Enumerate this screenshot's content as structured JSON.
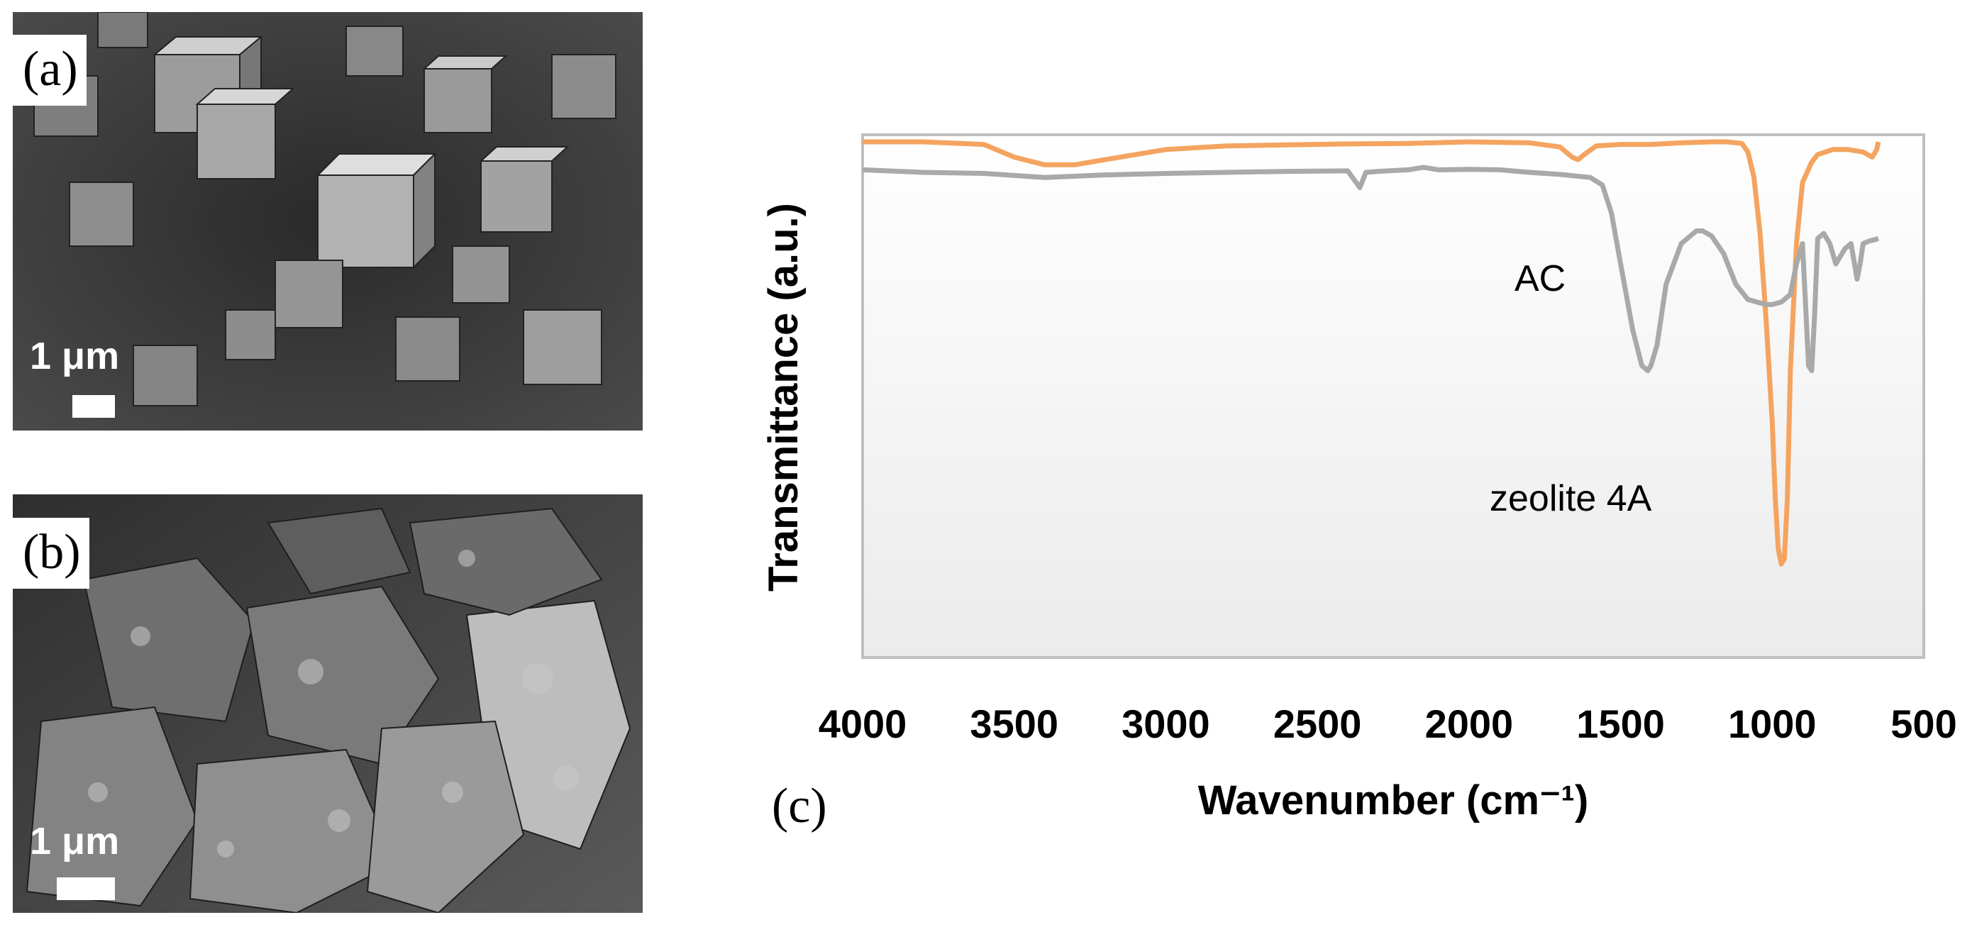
{
  "figure": {
    "panel_a": {
      "label": "(a)",
      "scale_text": "1 μm"
    },
    "panel_b": {
      "label": "(b)",
      "scale_text": "1 μm"
    },
    "panel_c": {
      "label": "(c)"
    }
  },
  "chart_data": {
    "type": "line",
    "title": "",
    "xlabel": "Wavenumber (cm⁻¹)",
    "ylabel": "Transmittance (a.u.)",
    "xlim": [
      4000,
      500
    ],
    "xticks": [
      "4000",
      "3500",
      "3000",
      "2500",
      "2000",
      "1500",
      "1000",
      "500"
    ],
    "ylim": [
      0,
      100
    ],
    "grid": false,
    "annotations": [
      {
        "text": "AC",
        "x": 1140,
        "y": 70
      },
      {
        "text": "zeolite 4A",
        "x": 1300,
        "y": 28
      }
    ],
    "series": [
      {
        "name": "zeolite 4A",
        "color": "#f4a460",
        "x": [
          4000,
          3800,
          3600,
          3500,
          3400,
          3300,
          3200,
          3100,
          3000,
          2800,
          2600,
          2400,
          2200,
          2000,
          1800,
          1700,
          1660,
          1640,
          1620,
          1580,
          1500,
          1400,
          1300,
          1200,
          1150,
          1100,
          1080,
          1060,
          1040,
          1020,
          1000,
          990,
          980,
          970,
          960,
          950,
          940,
          920,
          900,
          870,
          850,
          800,
          750,
          700,
          670,
          655,
          650
        ],
        "y": [
          100,
          100,
          99.5,
          97,
          95.5,
          95.5,
          96.5,
          97.5,
          98.5,
          99.2,
          99.4,
          99.6,
          99.7,
          100,
          99.8,
          99,
          97,
          96.5,
          97.5,
          99.2,
          99.5,
          99.5,
          99.8,
          100,
          100,
          99.7,
          98,
          93,
          82,
          65,
          45,
          30,
          20,
          17,
          18,
          30,
          55,
          80,
          92,
          96,
          97.5,
          98.5,
          98.5,
          98,
          97,
          98.5,
          100
        ]
      },
      {
        "name": "AC",
        "color": "#a9a9a9",
        "x": [
          4000,
          3800,
          3600,
          3400,
          3200,
          3000,
          2800,
          2600,
          2400,
          2360,
          2340,
          2300,
          2200,
          2150,
          2100,
          2000,
          1900,
          1800,
          1700,
          1600,
          1560,
          1530,
          1500,
          1460,
          1430,
          1410,
          1400,
          1380,
          1350,
          1300,
          1250,
          1230,
          1200,
          1160,
          1120,
          1080,
          1050,
          1020,
          1000,
          970,
          940,
          920,
          900,
          880,
          870,
          860,
          850,
          830,
          810,
          790,
          760,
          740,
          720,
          710,
          700,
          680,
          660,
          650
        ],
        "y": [
          94.5,
          94,
          93.8,
          93,
          93.5,
          93.8,
          94,
          94.2,
          94.3,
          91,
          94,
          94.2,
          94.5,
          95,
          94.5,
          94.6,
          94.5,
          94,
          93.6,
          93,
          91.5,
          86,
          76,
          63,
          56,
          55,
          56,
          60,
          72,
          80,
          82.5,
          82.5,
          81.5,
          78,
          72,
          69,
          68.5,
          68,
          68,
          68.5,
          70,
          76,
          80,
          56,
          55,
          66,
          81,
          82,
          80,
          76,
          79,
          80,
          73,
          76,
          80,
          80.5,
          80.8,
          81
        ]
      }
    ]
  }
}
